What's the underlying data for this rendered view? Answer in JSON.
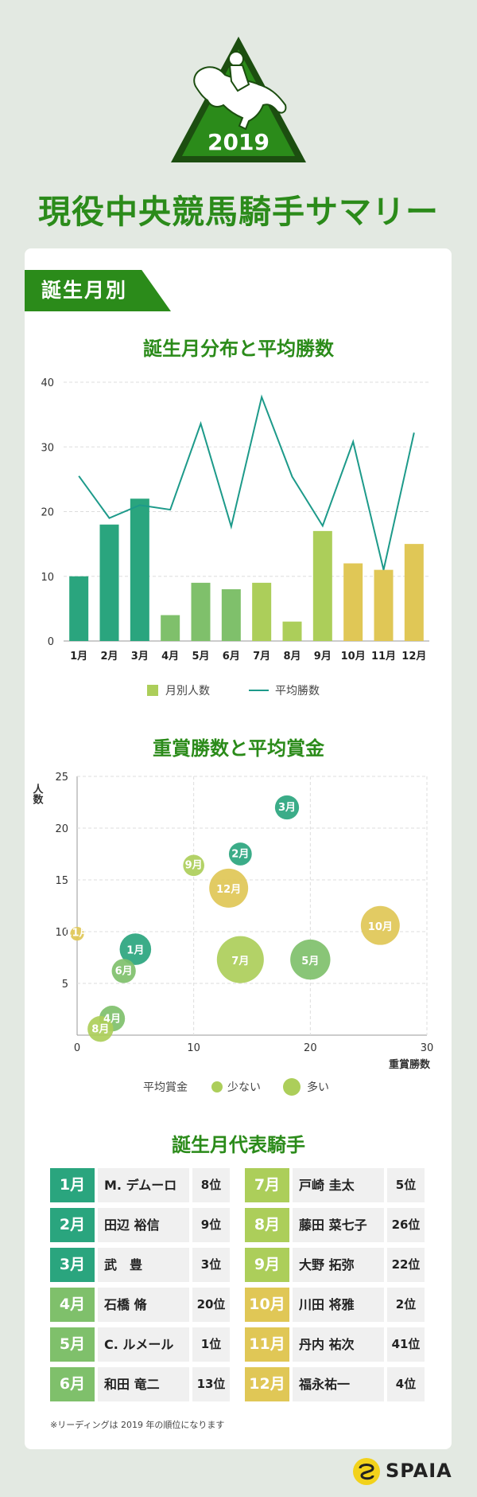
{
  "header": {
    "year": "2019",
    "title": "現役中央競馬騎手サマリー"
  },
  "section": {
    "label": "誕生月別"
  },
  "chart_data": [
    {
      "type": "bar",
      "title": "誕生月分布と平均勝数",
      "categories": [
        "1月",
        "2月",
        "3月",
        "4月",
        "5月",
        "6月",
        "7月",
        "8月",
        "9月",
        "10月",
        "11月",
        "12月"
      ],
      "series": [
        {
          "name": "月別人数",
          "values": [
            10,
            18,
            22,
            4,
            9,
            8,
            9,
            3,
            17,
            12,
            11,
            15
          ]
        },
        {
          "name": "平均勝数",
          "type": "line",
          "values": [
            25.5,
            19,
            21,
            20.3,
            33.6,
            17.7,
            37.7,
            25.4,
            17.8,
            30.8,
            11,
            32.2
          ]
        }
      ],
      "ylim": [
        0,
        40
      ],
      "yticks": [
        "0",
        "10",
        "20",
        "30",
        "40"
      ],
      "bar_colors": [
        "#2aa57e",
        "#2aa57e",
        "#2aa57e",
        "#7fc06b",
        "#7fc06b",
        "#7fc06b",
        "#acce5a",
        "#acce5a",
        "#acce5a",
        "#e0c756",
        "#e0c756",
        "#e0c756"
      ],
      "line_color": "#1d9a8a",
      "legend_swatch_color": "#acce5a",
      "grid": true,
      "legend": "bottom"
    },
    {
      "type": "scatter",
      "title": "重賞勝数と平均賞金",
      "xlabel": "重賞勝数",
      "ylabel": "人数",
      "xlim": [
        0,
        30
      ],
      "ylim": [
        0,
        25
      ],
      "xticks": [
        "0",
        "10",
        "20",
        "30"
      ],
      "yticks": [
        "5",
        "10",
        "15",
        "20",
        "25"
      ],
      "legend_title": "平均賞金",
      "legend_small": "少ない",
      "legend_large": "多い",
      "legend_color": "#acce5a",
      "grid": true,
      "points": [
        {
          "label": "1月",
          "x": 5,
          "y": 8.3,
          "size": 0.55,
          "color": "#2aa57e"
        },
        {
          "label": "2月",
          "x": 14,
          "y": 17.5,
          "size": 0.4,
          "color": "#2aa57e"
        },
        {
          "label": "3月",
          "x": 18,
          "y": 22,
          "size": 0.42,
          "color": "#2aa57e"
        },
        {
          "label": "4月",
          "x": 3,
          "y": 1.6,
          "size": 0.45,
          "color": "#7fc06b"
        },
        {
          "label": "5月",
          "x": 20,
          "y": 7.3,
          "size": 0.7,
          "color": "#7fc06b"
        },
        {
          "label": "6月",
          "x": 4,
          "y": 6.2,
          "size": 0.42,
          "color": "#7fc06b"
        },
        {
          "label": "7月",
          "x": 14,
          "y": 7.3,
          "size": 0.82,
          "color": "#acce5a"
        },
        {
          "label": "8月",
          "x": 2,
          "y": 0.6,
          "size": 0.45,
          "color": "#acce5a"
        },
        {
          "label": "9月",
          "x": 10,
          "y": 16.4,
          "size": 0.37,
          "color": "#acce5a"
        },
        {
          "label": "10月",
          "x": 26,
          "y": 10.6,
          "size": 0.68,
          "color": "#e0c756"
        },
        {
          "label": "11月",
          "x": 0,
          "y": 9.8,
          "size": 0.24,
          "color": "#e0c756"
        },
        {
          "label": "12月",
          "x": 13,
          "y": 14.2,
          "size": 0.68,
          "color": "#e0c756"
        }
      ]
    }
  ],
  "riders_section": {
    "title": "誕生月代表騎手",
    "riders": [
      {
        "month": "1月",
        "name": "M. デムーロ",
        "rank": "8位",
        "color": "#2aa57e"
      },
      {
        "month": "2月",
        "name": "田辺 裕信",
        "rank": "9位",
        "color": "#2aa57e"
      },
      {
        "month": "3月",
        "name": "武　豊",
        "rank": "3位",
        "color": "#2aa57e"
      },
      {
        "month": "4月",
        "name": "石橋 脩",
        "rank": "20位",
        "color": "#7fc06b"
      },
      {
        "month": "5月",
        "name": "C. ルメール",
        "rank": "1位",
        "color": "#7fc06b"
      },
      {
        "month": "6月",
        "name": "和田 竜二",
        "rank": "13位",
        "color": "#7fc06b"
      },
      {
        "month": "7月",
        "name": "戸崎 圭太",
        "rank": "5位",
        "color": "#acce5a"
      },
      {
        "month": "8月",
        "name": "藤田 菜七子",
        "rank": "26位",
        "color": "#acce5a"
      },
      {
        "month": "9月",
        "name": "大野 拓弥",
        "rank": "22位",
        "color": "#acce5a"
      },
      {
        "month": "10月",
        "name": "川田 将雅",
        "rank": "2位",
        "color": "#e0c756"
      },
      {
        "month": "11月",
        "name": "丹内 祐次",
        "rank": "41位",
        "color": "#e0c756"
      },
      {
        "month": "12月",
        "name": "福永祐一",
        "rank": "4位",
        "color": "#e0c756"
      }
    ],
    "footnote": "※リーディングは 2019 年の順位になります"
  },
  "brand": {
    "name": "SPAIA",
    "color": "#f2d21b"
  }
}
